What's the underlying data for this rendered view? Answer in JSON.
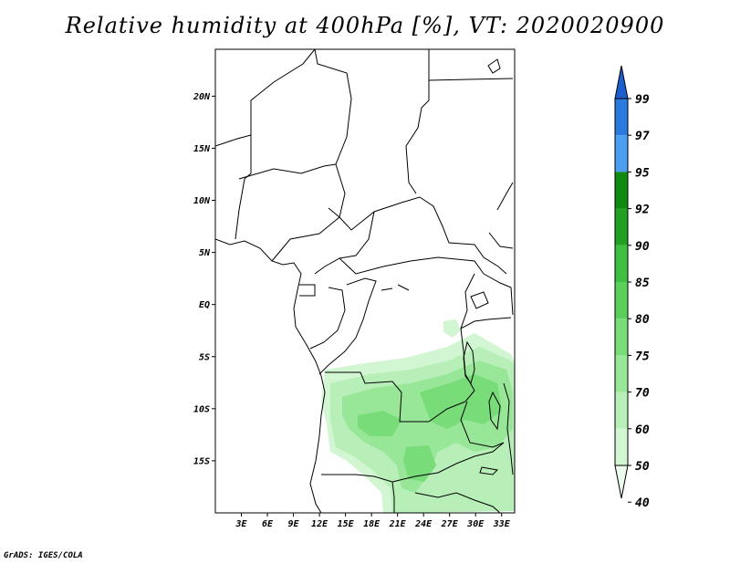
{
  "title": "Relative humidity at 400hPa [%], VT: 2020020900",
  "credit": "GrADS: IGES/COLA",
  "map": {
    "lon_range": [
      0,
      34.5
    ],
    "lat_range": [
      -20,
      24.5
    ],
    "lat_ticks": [
      {
        "value": 20,
        "label": "20N"
      },
      {
        "value": 15,
        "label": "15N"
      },
      {
        "value": 10,
        "label": "10N"
      },
      {
        "value": 5,
        "label": "5N"
      },
      {
        "value": 0,
        "label": "EQ"
      },
      {
        "value": -5,
        "label": "5S"
      },
      {
        "value": -10,
        "label": "10S"
      },
      {
        "value": -15,
        "label": "15S"
      }
    ],
    "lon_ticks": [
      {
        "value": 3,
        "label": "3E"
      },
      {
        "value": 6,
        "label": "6E"
      },
      {
        "value": 9,
        "label": "9E"
      },
      {
        "value": 12,
        "label": "12E"
      },
      {
        "value": 15,
        "label": "15E"
      },
      {
        "value": 18,
        "label": "18E"
      },
      {
        "value": 21,
        "label": "21E"
      },
      {
        "value": 24,
        "label": "24E"
      },
      {
        "value": 27,
        "label": "27E"
      },
      {
        "value": 30,
        "label": "30E"
      },
      {
        "value": 33,
        "label": "33E"
      }
    ]
  },
  "colorbar": {
    "levels": [
      "99",
      "97",
      "95",
      "92",
      "90",
      "85",
      "80",
      "75",
      "70",
      "60",
      "50",
      "40"
    ],
    "colors": [
      "#1e5fd0",
      "#2a7ae0",
      "#4b9ef0",
      "#0f8a0f",
      "#22a022",
      "#3fbf3f",
      "#5ad05a",
      "#78dc78",
      "#98e698",
      "#b8efb8",
      "#d2f5d2",
      "#ecfcec"
    ]
  },
  "humidity_fields": [
    {
      "level": "50",
      "color": "#d2f5d2"
    },
    {
      "level": "60",
      "color": "#b8efb8"
    },
    {
      "level": "70",
      "color": "#98e698"
    },
    {
      "level": "75",
      "color": "#78dc78"
    }
  ]
}
